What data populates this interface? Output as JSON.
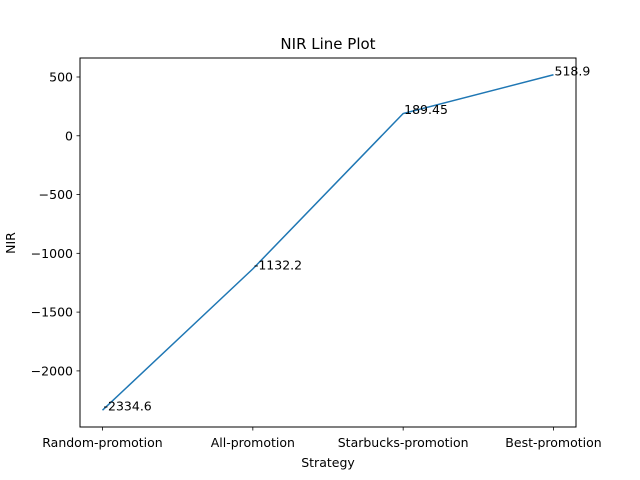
{
  "chart_data": {
    "type": "line",
    "title": "NIR Line Plot",
    "xlabel": "Strategy",
    "ylabel": "NIR",
    "categories": [
      "Random-promotion",
      "All-promotion",
      "Starbucks-promotion",
      "Best-promotion"
    ],
    "values": [
      -2334.6,
      -1132.2,
      189.45,
      518.9
    ],
    "data_labels": [
      "-2334.6",
      "-1132.2",
      "189.45",
      "518.9"
    ],
    "yticks": [
      500,
      0,
      -500,
      -1000,
      -1500,
      -2000
    ],
    "ytick_labels": [
      "500",
      "0",
      "−500",
      "−1000",
      "−1500",
      "−2000"
    ],
    "ylim": [
      -2477.3,
      661.6
    ],
    "grid": false,
    "line_color": "#1f77b4"
  }
}
